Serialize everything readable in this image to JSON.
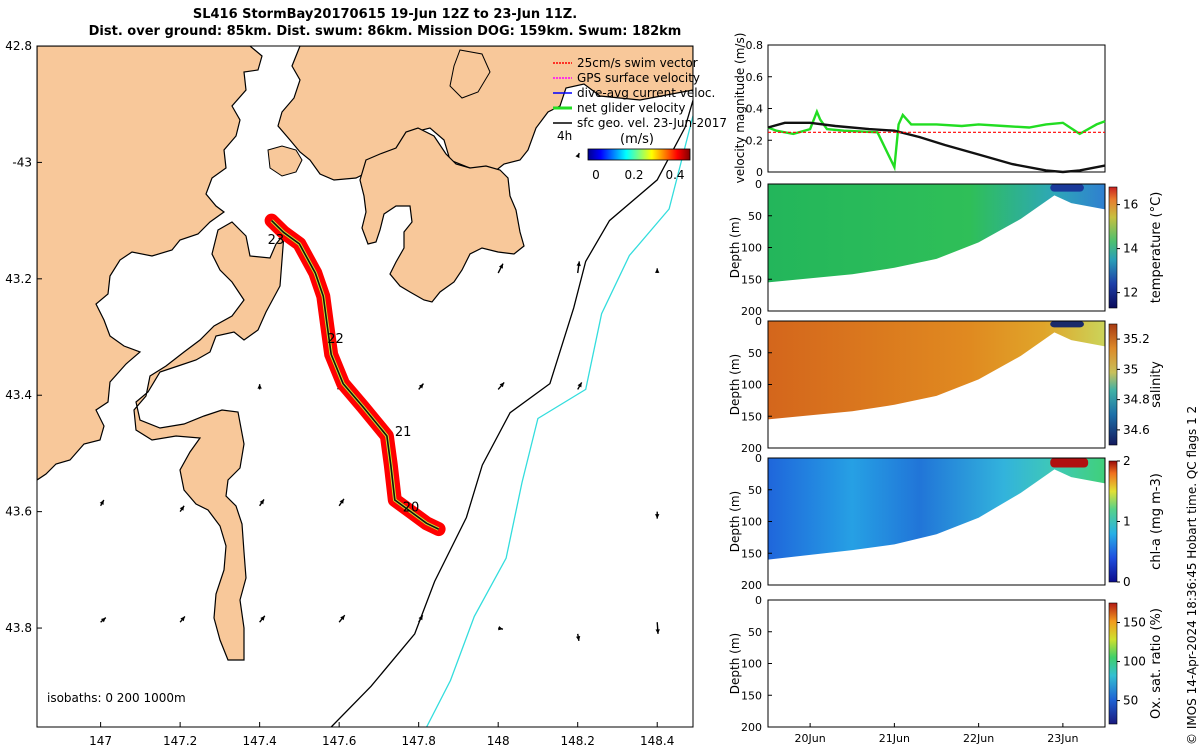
{
  "title": {
    "line1": "SL416 StormBay20170615 19-Jun 12Z to 23-Jun 11Z.",
    "line2": "Dist. over ground: 85km. Dist. swum: 86km. Mission DOG: 159km. Swum: 182km"
  },
  "credit": "© IMOS 14-Apr-2024 18:36:45 Hobart time. QC flags 1  2",
  "colors": {
    "land": "#f8c89a",
    "track": "#ff0000",
    "isobath_200": "#000000",
    "isobath_1000": "#33dddd",
    "green": "#22dd22",
    "dark": "#111111"
  },
  "chart_data": [
    {
      "type": "map",
      "title": "Glider track map",
      "x_ticks": [
        147,
        147.2,
        147.4,
        147.6,
        147.8,
        148,
        148.2,
        148.4
      ],
      "x_tick_labels": [
        "147",
        "147.2",
        "147.4",
        "147.6",
        "147.8",
        "148",
        "148.2",
        "148.4"
      ],
      "y_ticks": [
        -42.8,
        -43,
        -43.2,
        -43.4,
        -43.6,
        -43.8
      ],
      "y_tick_labels": [
        "42.8",
        "-43",
        "43.2",
        "43.4",
        "43.6",
        "43.8"
      ],
      "xlim": [
        146.84,
        148.49
      ],
      "ylim": [
        -43.97,
        -42.8
      ],
      "legend": [
        {
          "label": "25cm/s swim vector",
          "color": "#ff0000"
        },
        {
          "label": "GPS surface velocity",
          "color": "#ff00ff"
        },
        {
          "label": "dive-avg current veloc.",
          "color": "#0000ff"
        },
        {
          "label": "net glider velocity",
          "color": "#22dd22"
        },
        {
          "label": "sfc geo. vel. 23-Jun-2017",
          "color": "#000000"
        }
      ],
      "legend_extra": "4h",
      "colorbar": {
        "label": "(m/s)",
        "ticks": [
          "0",
          "0.2",
          "0.4"
        ],
        "range": [
          0,
          0.5
        ]
      },
      "isobaths_label": "isobaths: 0   200  1000m",
      "day_labels": [
        {
          "text": "23",
          "lon": 147.42,
          "lat": -43.14
        },
        {
          "text": "22",
          "lon": 147.57,
          "lat": -43.31
        },
        {
          "text": "21",
          "lon": 147.74,
          "lat": -43.47
        },
        {
          "text": "20",
          "lon": 147.76,
          "lat": -43.6
        }
      ],
      "track": [
        [
          147.43,
          -43.1
        ],
        [
          147.46,
          -43.12
        ],
        [
          147.5,
          -43.14
        ],
        [
          147.54,
          -43.19
        ],
        [
          147.56,
          -43.23
        ],
        [
          147.57,
          -43.28
        ],
        [
          147.58,
          -43.33
        ],
        [
          147.61,
          -43.38
        ],
        [
          147.66,
          -43.42
        ],
        [
          147.72,
          -43.47
        ],
        [
          147.73,
          -43.52
        ],
        [
          147.74,
          -43.58
        ],
        [
          147.78,
          -43.6
        ],
        [
          147.82,
          -43.62
        ],
        [
          147.85,
          -43.63
        ]
      ],
      "isobath_200": [
        [
          148.5,
          -42.87
        ],
        [
          148.47,
          -42.94
        ],
        [
          148.4,
          -43.03
        ],
        [
          148.28,
          -43.1
        ],
        [
          148.22,
          -43.17
        ],
        [
          148.19,
          -43.25
        ],
        [
          148.13,
          -43.38
        ],
        [
          148.03,
          -43.43
        ],
        [
          147.96,
          -43.52
        ],
        [
          147.92,
          -43.61
        ],
        [
          147.84,
          -43.72
        ],
        [
          147.79,
          -43.81
        ],
        [
          147.68,
          -43.9
        ],
        [
          147.58,
          -43.97
        ]
      ],
      "isobath_1000": [
        [
          148.49,
          -42.92
        ],
        [
          148.43,
          -43.08
        ],
        [
          148.33,
          -43.16
        ],
        [
          148.26,
          -43.26
        ],
        [
          148.22,
          -43.39
        ],
        [
          148.1,
          -43.44
        ],
        [
          148.06,
          -43.55
        ],
        [
          148.02,
          -43.68
        ],
        [
          147.94,
          -43.78
        ],
        [
          147.88,
          -43.89
        ],
        [
          147.82,
          -43.97
        ]
      ],
      "arrows": [
        {
          "lon": 147.0,
          "lat": -43.59,
          "u": 0.008,
          "v": 0.01
        },
        {
          "lon": 147.2,
          "lat": -43.6,
          "u": 0.01,
          "v": 0.01
        },
        {
          "lon": 147.4,
          "lat": -43.59,
          "u": 0.011,
          "v": 0.011
        },
        {
          "lon": 147.6,
          "lat": -43.59,
          "u": 0.012,
          "v": 0.012
        },
        {
          "lon": 148.4,
          "lat": -43.6,
          "u": 0.0,
          "v": -0.012
        },
        {
          "lon": 147.0,
          "lat": -43.79,
          "u": 0.013,
          "v": 0.008
        },
        {
          "lon": 147.2,
          "lat": -43.79,
          "u": 0.012,
          "v": 0.01
        },
        {
          "lon": 147.4,
          "lat": -43.79,
          "u": 0.013,
          "v": 0.011
        },
        {
          "lon": 147.6,
          "lat": -43.79,
          "u": 0.014,
          "v": 0.012
        },
        {
          "lon": 147.8,
          "lat": -43.79,
          "u": 0.01,
          "v": 0.012
        },
        {
          "lon": 148.0,
          "lat": -43.8,
          "u": 0.012,
          "v": -0.002
        },
        {
          "lon": 148.2,
          "lat": -43.81,
          "u": 0.003,
          "v": -0.012
        },
        {
          "lon": 148.4,
          "lat": -43.79,
          "u": 0.002,
          "v": -0.02
        },
        {
          "lon": 147.8,
          "lat": -43.39,
          "u": 0.012,
          "v": 0.01
        },
        {
          "lon": 148.0,
          "lat": -43.39,
          "u": 0.015,
          "v": 0.012
        },
        {
          "lon": 148.2,
          "lat": -43.39,
          "u": 0.01,
          "v": 0.012
        },
        {
          "lon": 147.4,
          "lat": -43.39,
          "u": 0.0,
          "v": 0.009
        },
        {
          "lon": 147.6,
          "lat": -43.39,
          "u": 0.0,
          "v": 0.008
        },
        {
          "lon": 148.0,
          "lat": -43.19,
          "u": 0.012,
          "v": 0.016
        },
        {
          "lon": 148.2,
          "lat": -43.19,
          "u": 0.004,
          "v": 0.02
        },
        {
          "lon": 148.4,
          "lat": -43.19,
          "u": 0.0,
          "v": 0.008
        },
        {
          "lon": 148.2,
          "lat": -42.99,
          "u": 0.004,
          "v": 0.006
        },
        {
          "lon": 148.4,
          "lat": -42.99,
          "u": 0.0,
          "v": 0.008
        }
      ]
    },
    {
      "type": "line",
      "ylabel": "velocity magnitude (m/s)",
      "ylim": [
        0,
        0.8
      ],
      "y_ticks": [
        "0",
        "0.2",
        "0.4",
        "0.6",
        "0.8"
      ],
      "xlim": [
        19.5,
        23.5
      ],
      "series": [
        {
          "name": "net glider velocity",
          "color": "#22dd22",
          "x": [
            19.5,
            19.6,
            19.8,
            20.0,
            20.08,
            20.12,
            20.2,
            20.4,
            20.8,
            21.0,
            21.05,
            21.1,
            21.2,
            21.5,
            21.8,
            22.0,
            22.3,
            22.6,
            22.8,
            23.0,
            23.2,
            23.4,
            23.5
          ],
          "y": [
            0.28,
            0.26,
            0.24,
            0.27,
            0.38,
            0.33,
            0.27,
            0.26,
            0.25,
            0.03,
            0.3,
            0.36,
            0.3,
            0.3,
            0.29,
            0.3,
            0.29,
            0.28,
            0.3,
            0.31,
            0.24,
            0.3,
            0.32
          ]
        },
        {
          "name": "sfc geo. vel.",
          "color": "#111111",
          "x": [
            19.5,
            19.7,
            20.0,
            20.3,
            20.7,
            21.0,
            21.3,
            21.6,
            22.0,
            22.4,
            22.8,
            23.0,
            23.2,
            23.5
          ],
          "y": [
            0.28,
            0.31,
            0.31,
            0.29,
            0.27,
            0.26,
            0.22,
            0.17,
            0.11,
            0.05,
            0.01,
            0.0,
            0.01,
            0.04
          ]
        },
        {
          "name": "swim speed",
          "color": "#ff0000",
          "x": [
            19.5,
            23.5
          ],
          "y": [
            0.25,
            0.25
          ]
        }
      ]
    },
    {
      "type": "heatmap",
      "ylabel": "Depth (m)",
      "cbar_label": "temperature (°C)",
      "ylim": [
        0,
        200
      ],
      "y_ticks": [
        "0",
        "50",
        "100",
        "150",
        "200"
      ],
      "cbar_ticks": [
        "12",
        "14",
        "16"
      ],
      "cbar_range": [
        11.3,
        16.8
      ],
      "bottom_depth": {
        "x": [
          19.5,
          20.5,
          21.0,
          21.5,
          22.0,
          22.5,
          22.9,
          23.1,
          23.5
        ],
        "y": [
          155,
          142,
          132,
          118,
          92,
          55,
          18,
          30,
          40
        ]
      },
      "surface_feature": {
        "x_start": 22.85,
        "x_end": 23.25,
        "depth": 12
      }
    },
    {
      "type": "heatmap",
      "ylabel": "Depth (m)",
      "cbar_label": "salinity",
      "ylim": [
        0,
        200
      ],
      "y_ticks": [
        "0",
        "50",
        "100",
        "150",
        "200"
      ],
      "cbar_ticks": [
        "34.6",
        "34.8",
        "35",
        "35.2"
      ],
      "cbar_range": [
        34.5,
        35.3
      ],
      "bottom_depth": {
        "x": [
          19.5,
          20.5,
          21.0,
          21.5,
          22.0,
          22.5,
          22.9,
          23.1,
          23.5
        ],
        "y": [
          155,
          142,
          132,
          118,
          92,
          55,
          18,
          30,
          40
        ]
      },
      "surface_feature": {
        "x_start": 22.85,
        "x_end": 23.25,
        "depth": 10
      }
    },
    {
      "type": "heatmap",
      "ylabel": "Depth (m)",
      "cbar_label": "chl-a (mg m-3)",
      "ylim": [
        0,
        200
      ],
      "y_ticks": [
        "0",
        "50",
        "100",
        "150",
        "200"
      ],
      "cbar_ticks": [
        "0",
        "1",
        "2"
      ],
      "cbar_range": [
        0,
        2
      ],
      "bottom_depth": {
        "x": [
          19.5,
          20.5,
          21.0,
          21.5,
          22.0,
          22.5,
          22.9,
          23.1,
          23.5
        ],
        "y": [
          160,
          145,
          136,
          120,
          94,
          55,
          18,
          30,
          40
        ]
      },
      "surface_feature": {
        "x_start": 22.85,
        "x_end": 23.3,
        "depth": 15
      }
    },
    {
      "type": "heatmap",
      "ylabel": "Depth (m)",
      "cbar_label": "Ox. sat. ratio (%)",
      "ylim": [
        0,
        200
      ],
      "y_ticks": [
        "0",
        "50",
        "100",
        "150",
        "200"
      ],
      "cbar_ticks": [
        "50",
        "100",
        "150"
      ],
      "cbar_range": [
        20,
        175
      ],
      "x_ticks": [
        "20Jun",
        "21Jun",
        "22Jun",
        "23Jun"
      ],
      "x_values": [
        20,
        21,
        22,
        23
      ],
      "xlim": [
        19.5,
        23.5
      ]
    }
  ]
}
